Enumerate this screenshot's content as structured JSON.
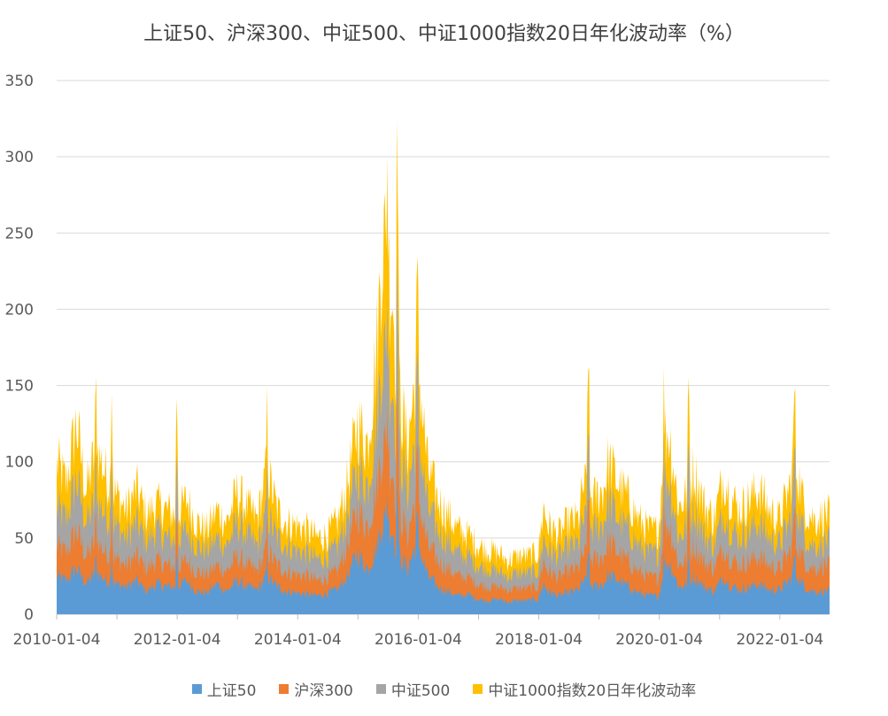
{
  "chart_data": {
    "type": "area",
    "stacked": true,
    "title": "上证50、沪深300、中证500、中证1000指数20日年化波动率（%）",
    "xlabel": "",
    "ylabel": "",
    "ylim": [
      0,
      350
    ],
    "yticks": [
      "0",
      "50",
      "100",
      "150",
      "200",
      "250",
      "300",
      "350"
    ],
    "xticks": [
      "2010-01-04",
      "2012-01-04",
      "2014-01-04",
      "2016-01-04",
      "2018-01-04",
      "2020-01-04",
      "2022-01-04"
    ],
    "grid": true,
    "legend_position": "bottom",
    "x_start": "2010-01-04",
    "x_end": "2022-10-31",
    "x_tick_step_years": 2,
    "series": [
      {
        "name": "上证50",
        "color": "#5B9BD5"
      },
      {
        "name": "沪深300",
        "color": "#ED7D31"
      },
      {
        "name": "中证500",
        "color": "#A5A5A5"
      },
      {
        "name": "中证1000指数20日年化波动率",
        "color": "#FFC000"
      }
    ],
    "x": [
      "2010-01",
      "2010-03",
      "2010-05",
      "2010-07",
      "2010-09",
      "2010-11",
      "2011-01",
      "2011-03",
      "2011-05",
      "2011-07",
      "2011-09",
      "2011-11",
      "2012-01",
      "2012-03",
      "2012-05",
      "2012-07",
      "2012-09",
      "2012-11",
      "2013-01",
      "2013-03",
      "2013-05",
      "2013-07",
      "2013-09",
      "2013-11",
      "2014-01",
      "2014-03",
      "2014-05",
      "2014-07",
      "2014-09",
      "2014-11",
      "2015-01",
      "2015-03",
      "2015-05",
      "2015-06",
      "2015-07",
      "2015-08",
      "2015-09",
      "2015-11",
      "2016-01",
      "2016-02",
      "2016-03",
      "2016-05",
      "2016-07",
      "2016-09",
      "2016-11",
      "2017-01",
      "2017-03",
      "2017-05",
      "2017-07",
      "2017-09",
      "2017-11",
      "2018-01",
      "2018-02",
      "2018-03",
      "2018-05",
      "2018-07",
      "2018-09",
      "2018-10",
      "2018-12",
      "2019-02",
      "2019-03",
      "2019-05",
      "2019-07",
      "2019-09",
      "2019-11",
      "2020-01",
      "2020-02",
      "2020-03",
      "2020-05",
      "2020-07",
      "2020-08",
      "2020-10",
      "2020-12",
      "2021-02",
      "2021-03",
      "2021-05",
      "2021-07",
      "2021-09",
      "2021-11",
      "2022-01",
      "2022-03",
      "2022-04",
      "2022-06",
      "2022-08",
      "2022-10"
    ],
    "stack_totals": {
      "上证50": [
        25,
        22,
        30,
        20,
        28,
        22,
        20,
        18,
        22,
        15,
        20,
        18,
        18,
        22,
        15,
        14,
        20,
        15,
        22,
        18,
        16,
        25,
        18,
        15,
        14,
        13,
        12,
        14,
        16,
        25,
        40,
        30,
        45,
        62,
        60,
        55,
        40,
        30,
        50,
        35,
        25,
        18,
        15,
        12,
        13,
        10,
        9,
        10,
        8,
        9,
        9,
        10,
        20,
        15,
        12,
        14,
        16,
        22,
        18,
        20,
        26,
        22,
        18,
        14,
        12,
        12,
        30,
        35,
        18,
        20,
        25,
        18,
        15,
        25,
        20,
        16,
        18,
        20,
        16,
        16,
        22,
        28,
        18,
        15,
        15
      ],
      "沪深300": [
        45,
        40,
        55,
        38,
        48,
        40,
        36,
        32,
        38,
        30,
        35,
        32,
        30,
        35,
        28,
        26,
        32,
        28,
        38,
        32,
        28,
        42,
        32,
        28,
        26,
        25,
        22,
        24,
        28,
        45,
        68,
        58,
        85,
        112,
        105,
        95,
        70,
        52,
        82,
        60,
        45,
        35,
        30,
        25,
        24,
        20,
        18,
        18,
        16,
        17,
        17,
        18,
        35,
        28,
        24,
        28,
        30,
        40,
        35,
        38,
        48,
        40,
        34,
        28,
        24,
        24,
        55,
        60,
        32,
        38,
        45,
        34,
        30,
        45,
        38,
        32,
        35,
        38,
        32,
        30,
        40,
        50,
        34,
        30,
        32
      ],
      "中证500": [
        70,
        62,
        88,
        60,
        75,
        65,
        58,
        50,
        60,
        48,
        55,
        50,
        48,
        55,
        45,
        42,
        50,
        45,
        60,
        52,
        45,
        65,
        50,
        45,
        42,
        40,
        36,
        38,
        44,
        65,
        95,
        85,
        130,
        175,
        160,
        150,
        110,
        82,
        125,
        95,
        70,
        55,
        48,
        40,
        38,
        32,
        30,
        28,
        25,
        27,
        27,
        28,
        50,
        42,
        38,
        44,
        46,
        62,
        55,
        60,
        75,
        62,
        55,
        45,
        40,
        40,
        85,
        90,
        50,
        60,
        70,
        52,
        45,
        68,
        58,
        50,
        55,
        60,
        50,
        46,
        60,
        78,
        52,
        45,
        48
      ],
      "中证1000指数20日年化波动率": [
        100,
        85,
        125,
        80,
        110,
        90,
        78,
        68,
        82,
        65,
        72,
        68,
        65,
        75,
        60,
        55,
        68,
        60,
        80,
        70,
        62,
        95,
        68,
        60,
        58,
        55,
        50,
        52,
        60,
        85,
        125,
        112,
        180,
        250,
        230,
        210,
        150,
        110,
        170,
        130,
        95,
        75,
        65,
        55,
        52,
        45,
        42,
        40,
        35,
        38,
        38,
        40,
        70,
        58,
        52,
        60,
        62,
        85,
        75,
        82,
        100,
        85,
        75,
        62,
        55,
        55,
        115,
        120,
        70,
        82,
        95,
        72,
        62,
        92,
        80,
        68,
        75,
        82,
        68,
        62,
        82,
        105,
        70,
        62,
        65
      ]
    },
    "peaks_annotated": [
      {
        "x": "2010-09",
        "total": 155
      },
      {
        "x": "2010-12",
        "total": 145
      },
      {
        "x": "2012-01",
        "total": 142
      },
      {
        "x": "2013-07",
        "total": 150
      },
      {
        "x": "2015-07",
        "total": 300
      },
      {
        "x": "2015-09",
        "total": 280
      },
      {
        "x": "2016-01",
        "total": 235
      },
      {
        "x": "2018-11",
        "total": 160
      },
      {
        "x": "2020-02",
        "total": 162
      },
      {
        "x": "2020-07",
        "total": 155
      },
      {
        "x": "2022-04",
        "total": 145
      }
    ]
  }
}
